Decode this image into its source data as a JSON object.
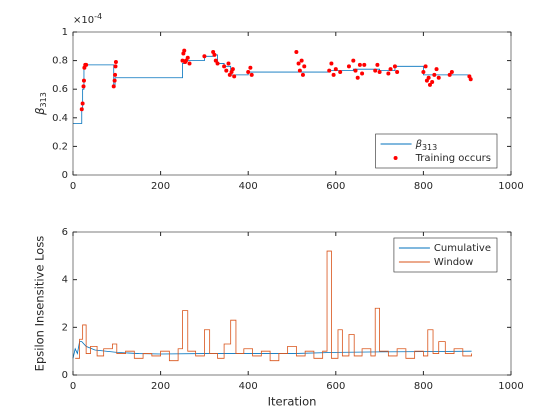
{
  "chart_data": [
    {
      "type": "line",
      "ylabel": "β313",
      "y_multiplier": {
        "base": "×10",
        "exponent": "-4"
      },
      "xlim": [
        0,
        1000
      ],
      "xticks": [
        0,
        200,
        400,
        600,
        800,
        1000
      ],
      "ylim": [
        0,
        1
      ],
      "yticks": [
        0,
        0.2,
        0.4,
        0.6,
        0.8,
        1
      ],
      "legend": "southeast",
      "series": [
        {
          "name": "β313",
          "color": "#0072bd",
          "style": "step",
          "x": [
            0,
            20,
            22,
            25,
            93,
            96,
            100,
            250,
            256,
            265,
            300,
            320,
            330,
            345,
            360,
            400,
            510,
            585,
            640,
            700,
            735,
            800,
            830,
            860,
            905,
            910
          ],
          "values": [
            0.36,
            0.46,
            0.6,
            0.77,
            0.62,
            0.68,
            0.68,
            0.78,
            0.8,
            0.8,
            0.83,
            0.84,
            0.78,
            0.76,
            0.7,
            0.72,
            0.72,
            0.73,
            0.74,
            0.73,
            0.76,
            0.7,
            0.7,
            0.7,
            0.68,
            0.68
          ]
        },
        {
          "name": "Training occurs",
          "color": "#ff0000",
          "style": "points",
          "x": [
            20,
            22,
            24,
            25,
            26,
            28,
            30,
            93,
            95,
            96,
            97,
            98,
            250,
            252,
            254,
            256,
            258,
            262,
            266,
            300,
            320,
            323,
            326,
            330,
            345,
            350,
            355,
            358,
            362,
            365,
            368,
            400,
            405,
            408,
            510,
            515,
            518,
            522,
            525,
            528,
            585,
            590,
            595,
            600,
            610,
            630,
            640,
            645,
            650,
            655,
            660,
            665,
            690,
            695,
            700,
            720,
            725,
            735,
            740,
            800,
            805,
            808,
            812,
            815,
            820,
            825,
            830,
            835,
            860,
            865,
            905,
            908
          ],
          "values": [
            0.46,
            0.5,
            0.62,
            0.66,
            0.75,
            0.77,
            0.77,
            0.62,
            0.66,
            0.7,
            0.76,
            0.79,
            0.8,
            0.85,
            0.87,
            0.79,
            0.8,
            0.82,
            0.78,
            0.83,
            0.86,
            0.84,
            0.8,
            0.78,
            0.76,
            0.73,
            0.78,
            0.7,
            0.72,
            0.74,
            0.69,
            0.72,
            0.75,
            0.7,
            0.86,
            0.78,
            0.73,
            0.8,
            0.7,
            0.76,
            0.73,
            0.78,
            0.7,
            0.74,
            0.72,
            0.76,
            0.8,
            0.73,
            0.68,
            0.77,
            0.71,
            0.77,
            0.73,
            0.77,
            0.72,
            0.71,
            0.74,
            0.76,
            0.72,
            0.72,
            0.76,
            0.66,
            0.68,
            0.63,
            0.65,
            0.7,
            0.74,
            0.68,
            0.7,
            0.72,
            0.69,
            0.67
          ]
        }
      ]
    },
    {
      "type": "line",
      "xlabel": "Iteration",
      "ylabel": "Epsilon Insensitive Loss",
      "xlim": [
        0,
        1000
      ],
      "xticks": [
        0,
        200,
        400,
        600,
        800,
        1000
      ],
      "ylim": [
        0,
        6
      ],
      "yticks": [
        0,
        2,
        4,
        6
      ],
      "legend": "northeast",
      "series": [
        {
          "name": "Cumulative",
          "color": "#0072bd",
          "style": "line",
          "x": [
            0,
            5,
            10,
            15,
            20,
            30,
            50,
            100,
            150,
            200,
            300,
            400,
            500,
            600,
            700,
            800,
            910
          ],
          "values": [
            0.7,
            1.1,
            0.9,
            1.4,
            1.4,
            1.2,
            1.05,
            0.95,
            0.9,
            0.88,
            0.9,
            0.9,
            0.9,
            0.95,
            0.97,
            0.98,
            1.0
          ]
        },
        {
          "name": "Window",
          "color": "#d95319",
          "style": "step",
          "x": [
            5,
            15,
            22,
            30,
            40,
            55,
            70,
            90,
            100,
            120,
            140,
            160,
            180,
            200,
            220,
            240,
            250,
            262,
            280,
            300,
            312,
            330,
            345,
            360,
            372,
            390,
            410,
            430,
            450,
            470,
            490,
            510,
            530,
            550,
            570,
            580,
            590,
            605,
            615,
            630,
            642,
            660,
            680,
            690,
            700,
            720,
            740,
            760,
            780,
            800,
            810,
            822,
            835,
            850,
            870,
            890,
            910
          ],
          "values": [
            0.7,
            1.5,
            2.1,
            0.9,
            1.2,
            0.8,
            1.1,
            1.3,
            0.9,
            1.0,
            0.7,
            0.9,
            0.8,
            1.0,
            0.6,
            1.1,
            2.7,
            1.0,
            0.8,
            1.9,
            0.9,
            0.7,
            1.3,
            2.3,
            0.9,
            1.1,
            0.8,
            1.0,
            0.6,
            0.9,
            1.2,
            0.8,
            1.0,
            0.7,
            1.0,
            5.2,
            0.7,
            1.9,
            0.8,
            1.7,
            0.8,
            1.1,
            0.8,
            2.8,
            1.0,
            0.8,
            1.1,
            0.7,
            1.0,
            0.8,
            1.9,
            0.9,
            1.4,
            0.9,
            1.1,
            0.8,
            0.9
          ]
        }
      ]
    }
  ]
}
